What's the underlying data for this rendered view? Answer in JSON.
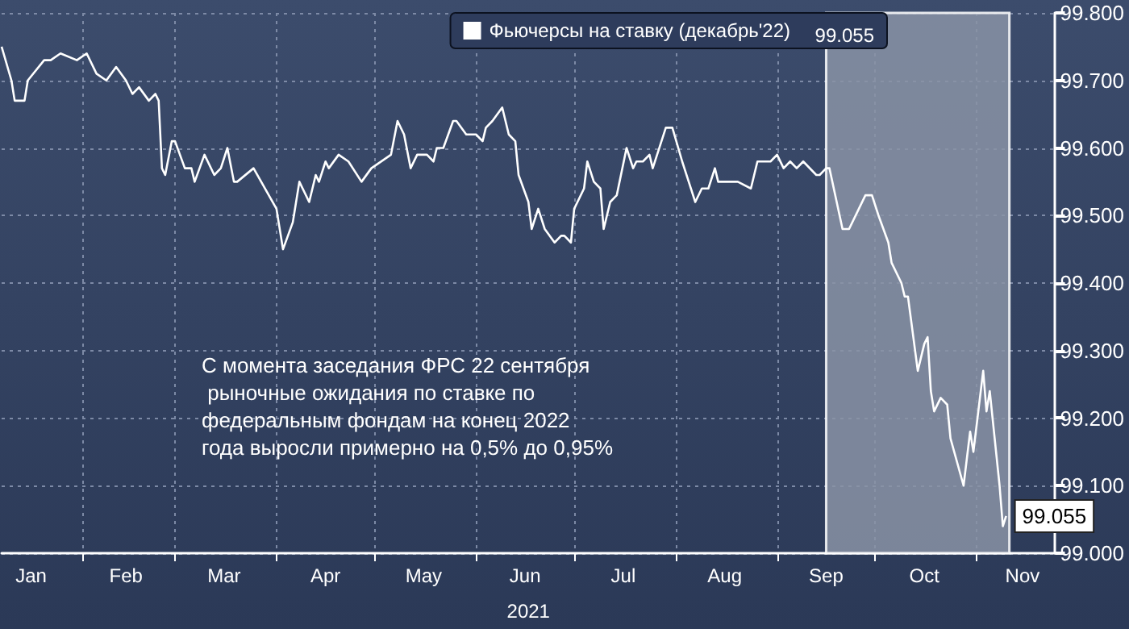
{
  "chart_data": {
    "type": "line",
    "xlabel": "2021",
    "x": [
      "2021-01-07",
      "2021-01-10",
      "2021-01-11",
      "2021-01-14",
      "2021-01-15",
      "2021-01-20",
      "2021-01-22",
      "2021-01-25",
      "2021-01-30",
      "2021-02-02",
      "2021-02-05",
      "2021-02-08",
      "2021-02-11",
      "2021-02-14",
      "2021-02-16",
      "2021-02-18",
      "2021-02-21",
      "2021-02-23",
      "2021-02-24",
      "2021-02-25",
      "2021-02-26",
      "2021-02-28",
      "2021-03-01",
      "2021-03-04",
      "2021-03-06",
      "2021-03-07",
      "2021-03-10",
      "2021-03-13",
      "2021-03-15",
      "2021-03-17",
      "2021-03-19",
      "2021-03-20",
      "2021-03-25",
      "2021-04-01",
      "2021-04-03",
      "2021-04-06",
      "2021-04-08",
      "2021-04-11",
      "2021-04-13",
      "2021-04-14",
      "2021-04-16",
      "2021-04-17",
      "2021-04-20",
      "2021-04-23",
      "2021-04-27",
      "2021-04-30",
      "2021-05-06",
      "2021-05-08",
      "2021-05-10",
      "2021-05-12",
      "2021-05-14",
      "2021-05-17",
      "2021-05-19",
      "2021-05-20",
      "2021-05-22",
      "2021-05-25",
      "2021-05-26",
      "2021-05-29",
      "2021-06-01",
      "2021-06-03",
      "2021-06-04",
      "2021-06-06",
      "2021-06-09",
      "2021-06-11",
      "2021-06-13",
      "2021-06-14",
      "2021-06-17",
      "2021-06-18",
      "2021-06-20",
      "2021-06-22",
      "2021-06-25",
      "2021-06-27",
      "2021-06-28",
      "2021-06-30",
      "2021-07-01",
      "2021-07-04",
      "2021-07-05",
      "2021-07-07",
      "2021-07-09",
      "2021-07-10",
      "2021-07-12",
      "2021-07-14",
      "2021-07-17",
      "2021-07-19",
      "2021-07-20",
      "2021-07-22",
      "2021-07-24",
      "2021-07-25",
      "2021-07-29",
      "2021-07-31",
      "2021-08-03",
      "2021-08-05",
      "2021-08-07",
      "2021-08-09",
      "2021-08-11",
      "2021-08-13",
      "2021-08-14",
      "2021-08-18",
      "2021-08-20",
      "2021-08-24",
      "2021-08-26",
      "2021-08-28",
      "2021-08-30",
      "2021-09-01",
      "2021-09-03",
      "2021-09-05",
      "2021-09-07",
      "2021-09-09",
      "2021-09-13",
      "2021-09-14",
      "2021-09-16",
      "2021-09-17",
      "2021-09-21",
      "2021-09-23",
      "2021-09-26",
      "2021-09-28",
      "2021-09-30",
      "2021-10-02",
      "2021-10-05",
      "2021-10-06",
      "2021-10-09",
      "2021-10-10",
      "2021-10-11",
      "2021-10-14",
      "2021-10-16",
      "2021-10-17",
      "2021-10-18",
      "2021-10-19",
      "2021-10-21",
      "2021-10-23",
      "2021-10-24",
      "2021-10-28",
      "2021-10-30",
      "2021-10-31",
      "2021-11-03",
      "2021-11-04",
      "2021-11-05",
      "2021-11-08",
      "2021-11-09",
      "2021-11-10"
    ],
    "series": [
      {
        "name": "Фьючерсы на ставку (декабрь'22)",
        "color": "#ffffff",
        "values": [
          99.75,
          99.7,
          99.67,
          99.67,
          99.7,
          99.73,
          99.73,
          99.74,
          99.73,
          99.74,
          99.71,
          99.7,
          99.72,
          99.7,
          99.68,
          99.69,
          99.67,
          99.68,
          99.67,
          99.57,
          99.56,
          99.61,
          99.61,
          99.57,
          99.57,
          99.55,
          99.59,
          99.56,
          99.57,
          99.6,
          99.55,
          99.55,
          99.57,
          99.51,
          99.45,
          99.49,
          99.55,
          99.52,
          99.56,
          99.55,
          99.58,
          99.57,
          99.59,
          99.58,
          99.55,
          99.57,
          99.59,
          99.64,
          99.62,
          99.57,
          99.59,
          99.59,
          99.58,
          99.6,
          99.6,
          99.64,
          99.64,
          99.62,
          99.62,
          99.61,
          99.63,
          99.64,
          99.66,
          99.62,
          99.61,
          99.56,
          99.52,
          99.48,
          99.51,
          99.48,
          99.46,
          99.47,
          99.47,
          99.46,
          99.51,
          99.54,
          99.58,
          99.55,
          99.54,
          99.48,
          99.52,
          99.53,
          99.6,
          99.57,
          99.58,
          99.58,
          99.59,
          99.57,
          99.63,
          99.63,
          99.58,
          99.55,
          99.52,
          99.54,
          99.54,
          99.57,
          99.55,
          99.55,
          99.55,
          99.54,
          99.58,
          99.58,
          99.58,
          99.59,
          99.57,
          99.58,
          99.57,
          99.58,
          99.56,
          99.56,
          99.57,
          99.57,
          99.48,
          99.48,
          99.51,
          99.53,
          99.53,
          99.5,
          99.46,
          99.43,
          99.4,
          99.38,
          99.38,
          99.27,
          99.31,
          99.32,
          99.24,
          99.21,
          99.23,
          99.22,
          99.17,
          99.1,
          99.18,
          99.15,
          99.27,
          99.21,
          99.24,
          99.1,
          99.04,
          99.055
        ],
        "value_labels": [
          null,
          null,
          null,
          null,
          null,
          null,
          null,
          null,
          null,
          null,
          null,
          null,
          null,
          null,
          null,
          null,
          null,
          null,
          null,
          null,
          null,
          null,
          null,
          null,
          null,
          null,
          null,
          null,
          null,
          null,
          null,
          null,
          null,
          null,
          null,
          null,
          null,
          null,
          null,
          null,
          null,
          null,
          null,
          null,
          null,
          null,
          null,
          null,
          null,
          null,
          null,
          null,
          null,
          null,
          null,
          null,
          null,
          null,
          null,
          null,
          null,
          null,
          null,
          null,
          null,
          null,
          null,
          null,
          null,
          null,
          null,
          null,
          null,
          null,
          null,
          null,
          null,
          null,
          null,
          null,
          null,
          null,
          null,
          null,
          null,
          null,
          null,
          null,
          null,
          null,
          null,
          null,
          null,
          null,
          null,
          null,
          null,
          null,
          null,
          null,
          null,
          null,
          null,
          null,
          null,
          null,
          null,
          null,
          null,
          null,
          null,
          null,
          null,
          null,
          null,
          null,
          null,
          null,
          null,
          null,
          null,
          null,
          null,
          null,
          null,
          null,
          null,
          null,
          null,
          null,
          null,
          null,
          null,
          null,
          null,
          null,
          null,
          null,
          null,
          "99.055"
        ]
      }
    ],
    "xlim": [
      "2021-01-07",
      "2021-11-25"
    ],
    "xticks": [
      {
        "value": "2021-01-16",
        "label": "Jan"
      },
      {
        "value": "2021-02-01",
        "label": null
      },
      {
        "value": "2021-02-14",
        "label": "Feb"
      },
      {
        "value": "2021-03-01",
        "label": null
      },
      {
        "value": "2021-03-16",
        "label": "Mar"
      },
      {
        "value": "2021-04-01",
        "label": null
      },
      {
        "value": "2021-04-16",
        "label": "Apr"
      },
      {
        "value": "2021-05-01",
        "label": null
      },
      {
        "value": "2021-05-16",
        "label": "May"
      },
      {
        "value": "2021-06-01",
        "label": null
      },
      {
        "value": "2021-06-16",
        "label": "Jun"
      },
      {
        "value": "2021-07-01",
        "label": null
      },
      {
        "value": "2021-07-16",
        "label": "Jul"
      },
      {
        "value": "2021-08-01",
        "label": null
      },
      {
        "value": "2021-08-16",
        "label": "Aug"
      },
      {
        "value": "2021-09-01",
        "label": null
      },
      {
        "value": "2021-09-16",
        "label": "Sep"
      },
      {
        "value": "2021-10-01",
        "label": null
      },
      {
        "value": "2021-10-16",
        "label": "Oct"
      },
      {
        "value": "2021-11-01",
        "label": null
      },
      {
        "value": "2021-11-15",
        "label": "Nov"
      }
    ],
    "ylim": [
      99.0,
      99.8
    ],
    "yticks": [
      {
        "value": 99.0,
        "label": "99.000"
      },
      {
        "value": 99.1,
        "label": "99.100"
      },
      {
        "value": 99.2,
        "label": "99.200"
      },
      {
        "value": 99.3,
        "label": "99.300"
      },
      {
        "value": 99.4,
        "label": "99.400"
      },
      {
        "value": 99.5,
        "label": "99.500"
      },
      {
        "value": 99.6,
        "label": "99.600"
      },
      {
        "value": 99.7,
        "label": "99.700"
      },
      {
        "value": 99.8,
        "label": "99.800"
      }
    ],
    "bands": [
      {
        "axis": "x",
        "from": "2021-09-16",
        "to": "2021-11-11",
        "color": "#8a93a6"
      }
    ],
    "annotations": [
      "С момента заседания ФРС 22 сентября рыночные ожидания по ставке по федеральным фондам на конец 2022 года выросли примерно на 0,5% до 0,95%"
    ],
    "grid": true,
    "legend": "top",
    "marker": "none"
  }
}
